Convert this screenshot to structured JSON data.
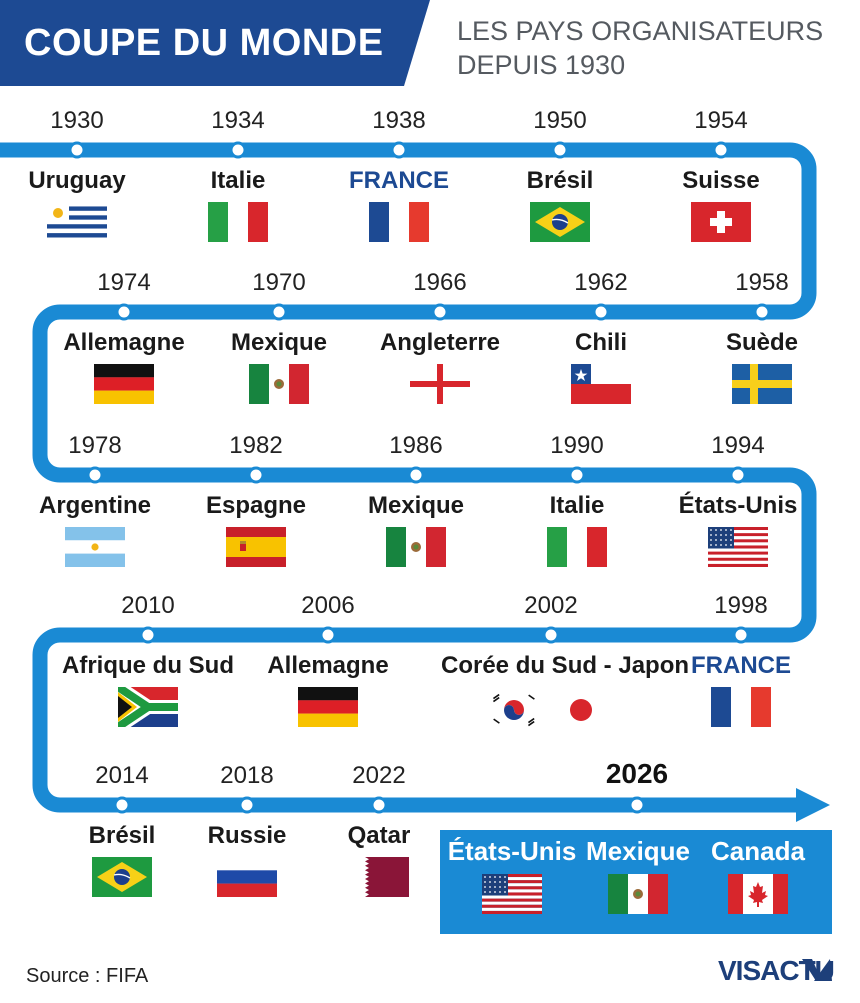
{
  "header": {
    "title": "COUPE DU MONDE",
    "subtitle_line1": "LES PAYS ORGANISATEURS",
    "subtitle_line2": "DEPUIS 1930"
  },
  "colors": {
    "track": "#1a8ad4",
    "title_bg": "#1d4a93",
    "france_text": "#1d4a93"
  },
  "editions": [
    {
      "year": "1930",
      "country": "Uruguay",
      "flag": "uruguay-flag"
    },
    {
      "year": "1934",
      "country": "Italie",
      "flag": "italy-flag"
    },
    {
      "year": "1938",
      "country": "FRANCE",
      "flag": "france-flag"
    },
    {
      "year": "1950",
      "country": "Brésil",
      "flag": "brazil-flag"
    },
    {
      "year": "1954",
      "country": "Suisse",
      "flag": "switzerland-flag"
    },
    {
      "year": "1958",
      "country": "Suède",
      "flag": "sweden-flag"
    },
    {
      "year": "1962",
      "country": "Chili",
      "flag": "chile-flag"
    },
    {
      "year": "1966",
      "country": "Angleterre",
      "flag": "england-flag"
    },
    {
      "year": "1970",
      "country": "Mexique",
      "flag": "mexico-flag"
    },
    {
      "year": "1974",
      "country": "Allemagne",
      "flag": "germany-flag"
    },
    {
      "year": "1978",
      "country": "Argentine",
      "flag": "argentina-flag"
    },
    {
      "year": "1982",
      "country": "Espagne",
      "flag": "spain-flag"
    },
    {
      "year": "1986",
      "country": "Mexique",
      "flag": "mexico-flag"
    },
    {
      "year": "1990",
      "country": "Italie",
      "flag": "italy-flag"
    },
    {
      "year": "1994",
      "country": "États-Unis",
      "flag": "usa-flag"
    },
    {
      "year": "1998",
      "country": "FRANCE",
      "flag": "france-flag"
    },
    {
      "year": "2002",
      "country": "Corée du Sud - Japon",
      "flag": "korea-japan-flags"
    },
    {
      "year": "2006",
      "country": "Allemagne",
      "flag": "germany-flag"
    },
    {
      "year": "2010",
      "country": "Afrique du Sud",
      "flag": "south-africa-flag"
    },
    {
      "year": "2014",
      "country": "Brésil",
      "flag": "brazil-flag"
    },
    {
      "year": "2018",
      "country": "Russie",
      "flag": "russia-flag"
    },
    {
      "year": "2022",
      "country": "Qatar",
      "flag": "qatar-flag"
    },
    {
      "year": "2026",
      "country": "",
      "flag": ""
    }
  ],
  "hosts_2026": [
    {
      "country": "États-Unis",
      "flag": "usa-flag"
    },
    {
      "country": "Mexique",
      "flag": "mexico-flag"
    },
    {
      "country": "Canada",
      "flag": "canada-flag"
    }
  ],
  "footer": {
    "source": "Source : FIFA",
    "logo": "VISACTU"
  }
}
